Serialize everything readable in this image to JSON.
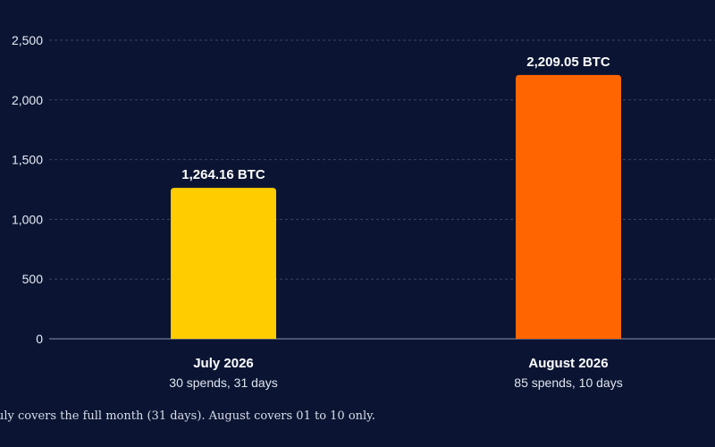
{
  "chart_data": {
    "type": "bar",
    "categories": [
      "July 2026",
      "August 2026"
    ],
    "category_sublabels": [
      "30 spends, 31 days",
      "85 spends, 10 days"
    ],
    "values": [
      1264.16,
      2209.05
    ],
    "value_labels": [
      "1,264.16 BTC",
      "2,209.05 BTC"
    ],
    "bar_colors": [
      "#ffcc00",
      "#ff6600"
    ],
    "yticks": [
      0,
      500,
      1000,
      1500,
      2000,
      2500
    ],
    "ytick_labels": [
      "0",
      "500",
      "1,000",
      "1,500",
      "2,000",
      "2,500"
    ],
    "ylim": [
      0,
      2500
    ],
    "grid": true,
    "title": "",
    "xlabel": "",
    "ylabel": ""
  },
  "footnote": "uly covers the full month (31 days). August covers 01 to 10 only.",
  "colors": {
    "background": "#0b1533",
    "grid": "#3a4560",
    "baseline": "#8a93a8"
  }
}
